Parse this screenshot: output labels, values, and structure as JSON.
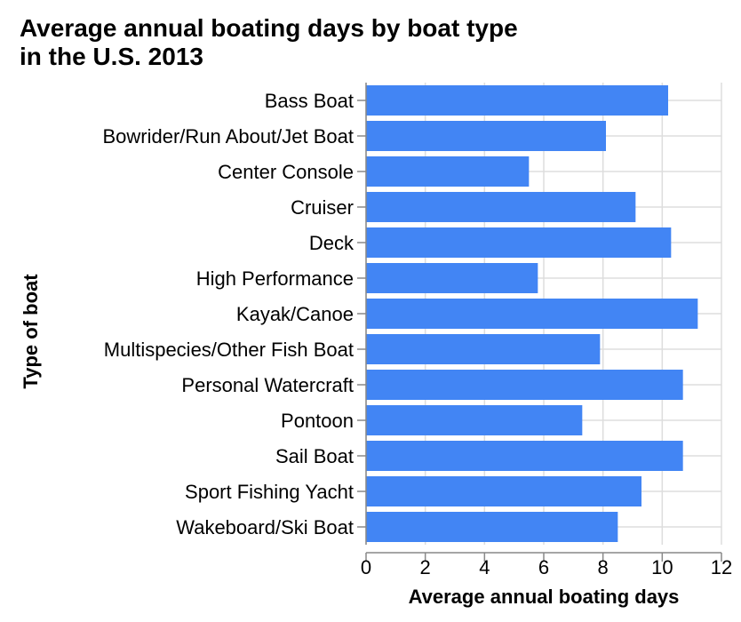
{
  "chart_data": {
    "type": "bar",
    "orientation": "horizontal",
    "title_lines": [
      "Average annual boating days by boat type",
      "in the U.S. 2013"
    ],
    "xlabel": "Average annual boating days",
    "ylabel": "Type of boat",
    "categories": [
      "Bass Boat",
      "Bowrider/Run About/Jet Boat",
      "Center Console",
      "Cruiser",
      "Deck",
      "High Performance",
      "Kayak/Canoe",
      "Multispecies/Other Fish Boat",
      "Personal Watercraft",
      "Pontoon",
      "Sail Boat",
      "Sport Fishing Yacht",
      "Wakeboard/Ski Boat"
    ],
    "values": [
      10.2,
      8.1,
      5.5,
      9.1,
      10.3,
      5.8,
      11.2,
      7.9,
      10.7,
      7.3,
      10.7,
      9.3,
      8.5
    ],
    "xlim": [
      0,
      12
    ],
    "xticks": [
      "0",
      "2",
      "4",
      "6",
      "8",
      "10",
      "12"
    ],
    "grid": true,
    "bar_color": "#4285f4",
    "grid_color": "#dddddd"
  }
}
